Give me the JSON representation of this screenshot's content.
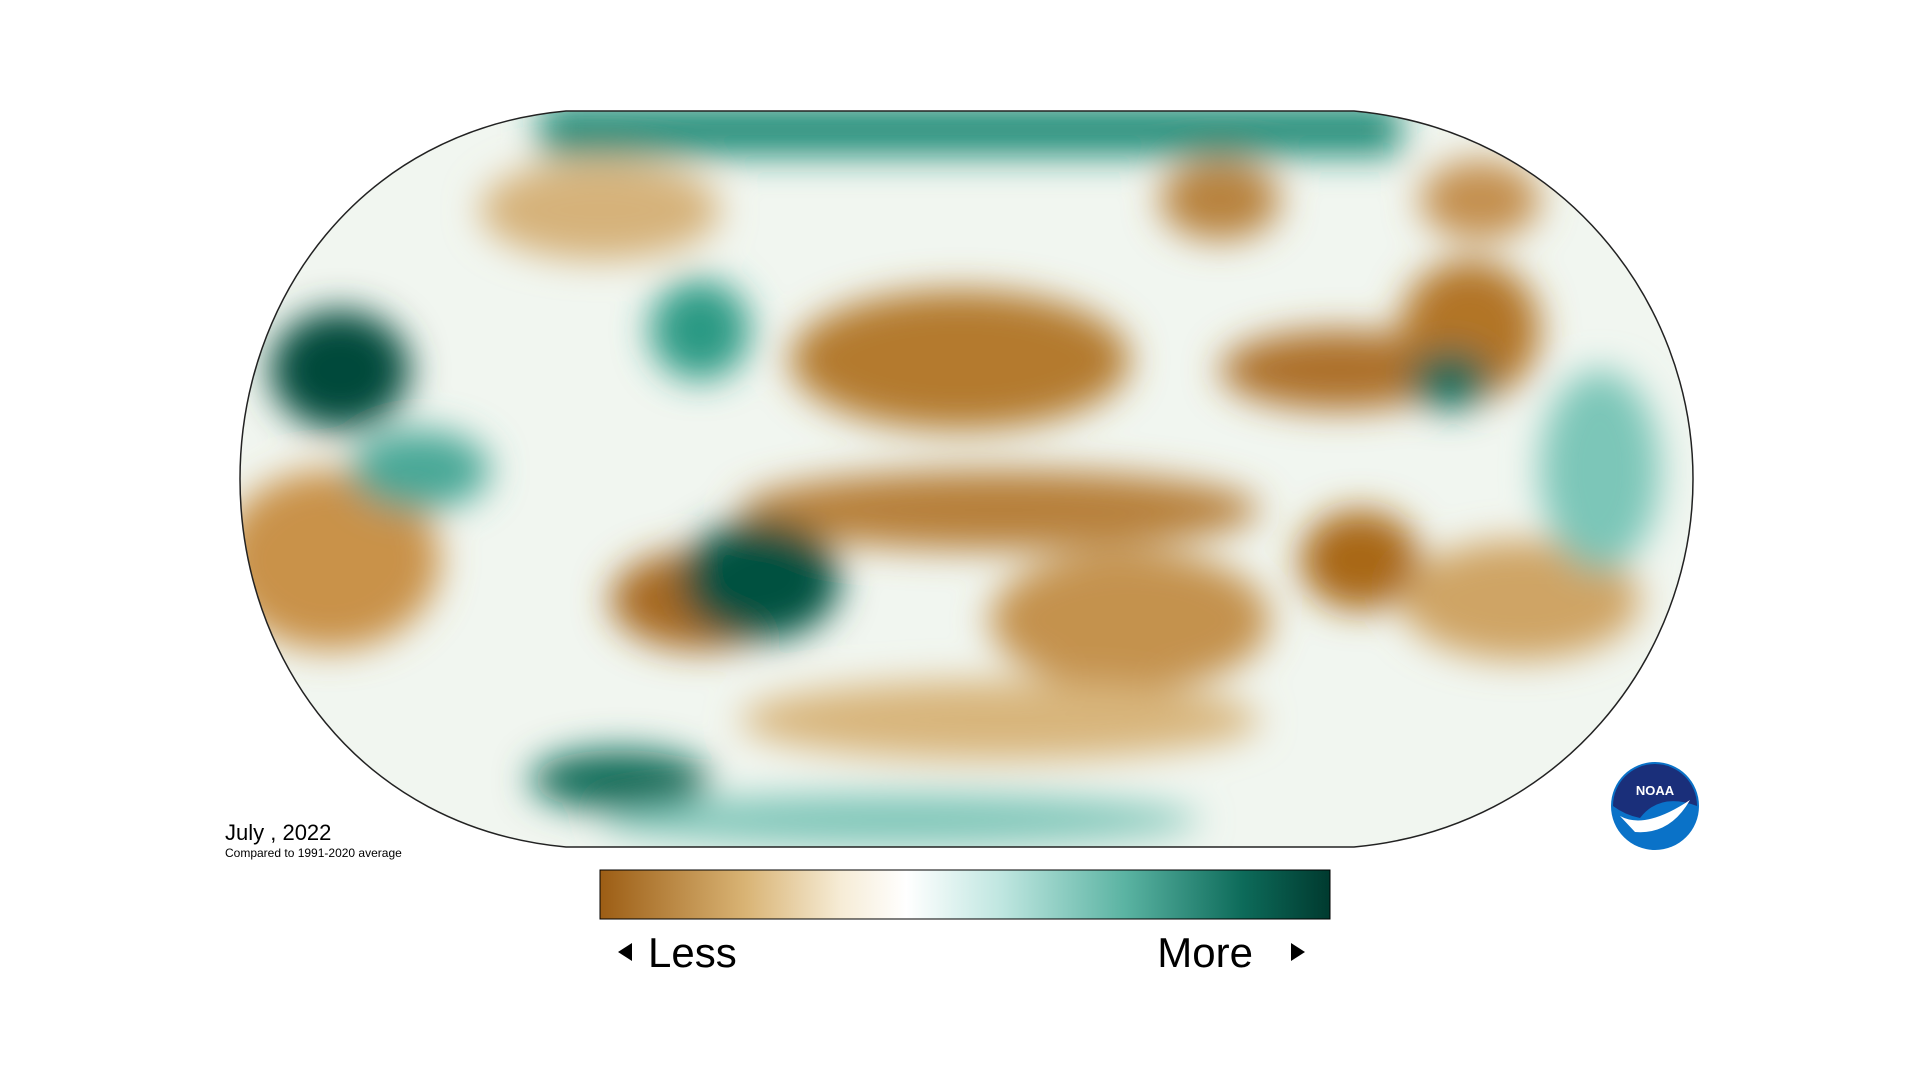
{
  "caption": {
    "title": "July , 2022",
    "subtitle": "Compared to 1991-2020 average"
  },
  "legend": {
    "less": "Less",
    "more": "More"
  },
  "logo": {
    "text": "NOAA"
  }
}
